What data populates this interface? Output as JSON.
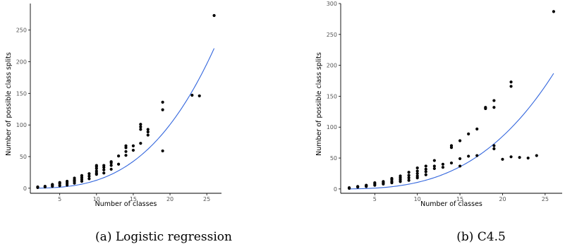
{
  "chart_data": [
    {
      "type": "scatter",
      "caption": "(a) Logistic regression",
      "xlabel": "Number of classes",
      "ylabel": "Number of possible class splits",
      "xlim": [
        1,
        27
      ],
      "ylim": [
        -8,
        292
      ],
      "xticks": [
        5,
        10,
        15,
        20,
        25
      ],
      "yticks": [
        0,
        50,
        100,
        150,
        200,
        250
      ],
      "grid": false,
      "fit_curve": {
        "color": "#3366dd",
        "x": [
          2,
          26
        ],
        "formula": "0.01258*x^3"
      },
      "series": [
        {
          "x": [
            2,
            2,
            3,
            3,
            4,
            4,
            4,
            5,
            5,
            5,
            6,
            6,
            6,
            7,
            7,
            7,
            7,
            8,
            8,
            8,
            8,
            9,
            9,
            9,
            10,
            10,
            10,
            10,
            10,
            10,
            11,
            11,
            11,
            11,
            12,
            12,
            12,
            12,
            13,
            13,
            14,
            14,
            14,
            14,
            15,
            15,
            16,
            16,
            16,
            16,
            17,
            17,
            17,
            19,
            19,
            19,
            23,
            24,
            26
          ],
          "y": [
            1,
            2,
            2,
            3,
            3,
            5,
            6,
            4,
            7,
            9,
            5,
            8,
            11,
            8,
            11,
            13,
            16,
            11,
            14,
            17,
            20,
            15,
            19,
            23,
            22,
            24,
            27,
            31,
            34,
            36,
            24,
            29,
            33,
            36,
            30,
            36,
            40,
            42,
            38,
            51,
            52,
            58,
            64,
            67,
            60,
            67,
            71,
            93,
            97,
            101,
            84,
            89,
            93,
            59,
            124,
            136,
            147,
            146,
            273
          ]
        }
      ]
    },
    {
      "type": "scatter",
      "caption": "(b) C4.5",
      "xlabel": "Number of classes",
      "ylabel": "Number of possible class splits",
      "xlim": [
        1,
        27
      ],
      "ylim": [
        -7,
        300
      ],
      "xticks": [
        5,
        10,
        15,
        20,
        25
      ],
      "yticks": [
        0,
        50,
        100,
        150,
        200,
        250,
        300
      ],
      "grid": false,
      "fit_curve": {
        "color": "#3366dd",
        "x": [
          2,
          26
        ],
        "formula": "0.01064*x^3"
      },
      "series": [
        {
          "x": [
            2,
            2,
            3,
            3,
            4,
            4,
            4,
            5,
            5,
            5,
            6,
            6,
            6,
            7,
            7,
            7,
            7,
            8,
            8,
            8,
            8,
            9,
            9,
            9,
            9,
            10,
            10,
            10,
            10,
            10,
            11,
            11,
            11,
            11,
            12,
            12,
            12,
            13,
            13,
            14,
            14,
            14,
            15,
            15,
            15,
            16,
            16,
            17,
            17,
            18,
            18,
            19,
            19,
            19,
            19,
            20,
            21,
            21,
            21,
            22,
            23,
            24,
            26
          ],
          "y": [
            1,
            2,
            3,
            4,
            4,
            5,
            6,
            6,
            8,
            10,
            8,
            10,
            12,
            10,
            12,
            15,
            17,
            12,
            15,
            18,
            21,
            14,
            18,
            22,
            27,
            18,
            21,
            25,
            29,
            34,
            23,
            28,
            32,
            37,
            33,
            37,
            46,
            35,
            40,
            42,
            67,
            70,
            37,
            49,
            78,
            53,
            89,
            54,
            97,
            130,
            132,
            65,
            70,
            132,
            143,
            48,
            52,
            166,
            173,
            51,
            50,
            54,
            287
          ]
        }
      ]
    }
  ]
}
